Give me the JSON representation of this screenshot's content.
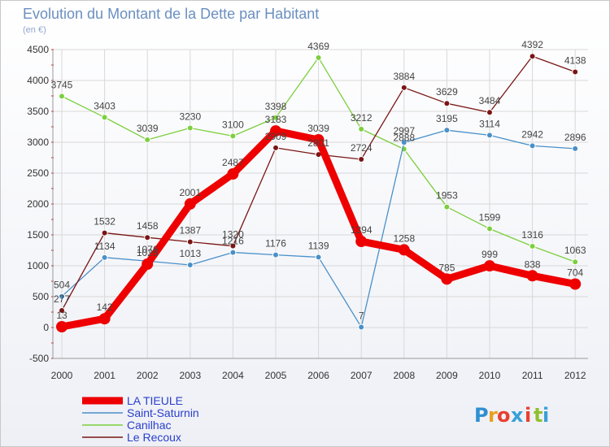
{
  "chart_data": {
    "type": "line",
    "title": "Evolution du Montant de la Dette par Habitant",
    "subtitle": "(en €)",
    "xlabel": "",
    "ylabel": "",
    "categories": [
      "2000",
      "2001",
      "2002",
      "2003",
      "2004",
      "2005",
      "2006",
      "2007",
      "2008",
      "2009",
      "2010",
      "2011",
      "2012"
    ],
    "ylim": [
      -500,
      4500
    ],
    "yticks": [
      -500,
      0,
      500,
      1000,
      1500,
      2000,
      2500,
      3000,
      3500,
      4000,
      4500
    ],
    "grid": true,
    "legend_position": "bottom-left",
    "series": [
      {
        "name": "LA TIEULE",
        "color": "#ee0000",
        "values": [
          13,
          142,
          1026,
          2001,
          2487,
          3183,
          3039,
          1394,
          1258,
          785,
          999,
          838,
          704
        ]
      },
      {
        "name": "Saint-Saturnin",
        "color": "#4a90c8",
        "values": [
          504,
          1134,
          1076,
          1013,
          1216,
          1176,
          1139,
          7,
          2997,
          3195,
          3114,
          2942,
          2896
        ]
      },
      {
        "name": "Canilhac",
        "color": "#7ccf3e",
        "values": [
          3745,
          3403,
          3039,
          3230,
          3100,
          3398,
          4369,
          3212,
          2888,
          1953,
          1599,
          1316,
          1063
        ]
      },
      {
        "name": "Le Recoux",
        "color": "#7a1515",
        "values": [
          277,
          1532,
          1458,
          1387,
          1320,
          2909,
          2801,
          2724,
          3884,
          3629,
          3484,
          4392,
          4138
        ]
      }
    ]
  },
  "logo": {
    "text": "Proxiti",
    "letters": [
      "P",
      "r",
      "o",
      "x",
      "i",
      "t",
      "i"
    ],
    "colors": [
      "#2f8fd0",
      "#e8a020",
      "#e84030",
      "#3aa0d8",
      "#e84030",
      "#90c030",
      "#3aa0d8"
    ]
  }
}
